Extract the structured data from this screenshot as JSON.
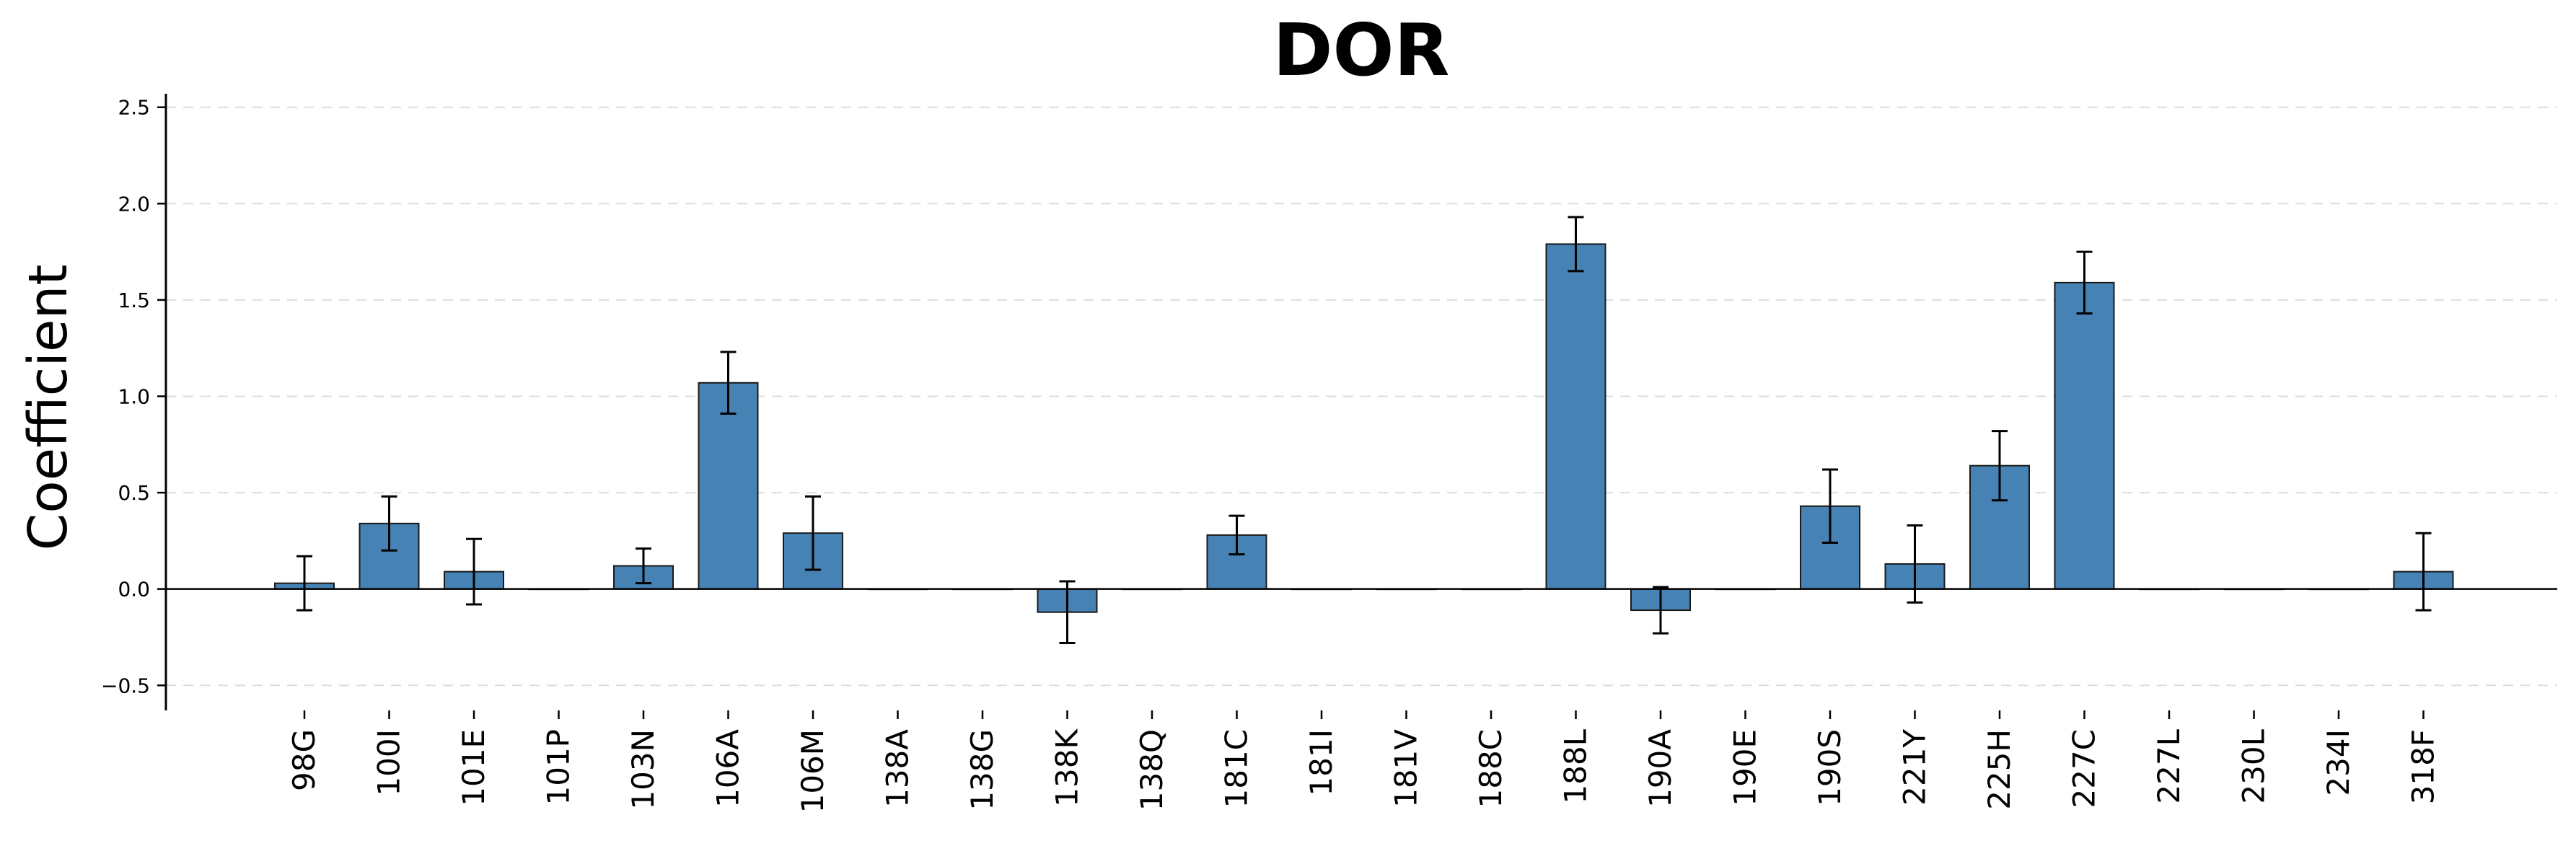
{
  "chart_data": {
    "type": "bar",
    "title": "DOR",
    "xlabel": "",
    "ylabel": "Coefficient",
    "ylim": [
      -0.63,
      2.57
    ],
    "yticks": [
      -0.5,
      0.0,
      0.5,
      1.0,
      1.5,
      2.0,
      2.5
    ],
    "ytick_labels": [
      "−0.5",
      "0.0",
      "0.5",
      "1.0",
      "1.5",
      "2.0",
      "2.5"
    ],
    "grid": "horizontal dashed",
    "categories": [
      "98G",
      "100I",
      "101E",
      "101P",
      "103N",
      "106A",
      "106M",
      "138A",
      "138G",
      "138K",
      "138Q",
      "181C",
      "181I",
      "181V",
      "188C",
      "188L",
      "190A",
      "190E",
      "190S",
      "221Y",
      "225H",
      "227C",
      "227L",
      "230L",
      "234I",
      "318F"
    ],
    "values": [
      0.03,
      0.34,
      0.09,
      0.0,
      0.12,
      1.07,
      0.29,
      0.0,
      0.0,
      -0.12,
      0.0,
      0.28,
      0.0,
      0.0,
      0.0,
      1.79,
      -0.11,
      0.0,
      0.43,
      0.13,
      0.64,
      1.59,
      0.0,
      0.0,
      0.0,
      0.09
    ],
    "error": [
      0.14,
      0.14,
      0.17,
      0.0,
      0.09,
      0.16,
      0.19,
      0.0,
      0.0,
      0.16,
      0.0,
      0.1,
      0.0,
      0.0,
      0.0,
      0.14,
      0.12,
      0.0,
      0.19,
      0.2,
      0.18,
      0.16,
      0.0,
      0.0,
      0.0,
      0.2
    ],
    "colors": {
      "bar": "#4682b4",
      "edge": "#1a1a1a",
      "error": "#000000",
      "grid": "#dddddd"
    }
  }
}
